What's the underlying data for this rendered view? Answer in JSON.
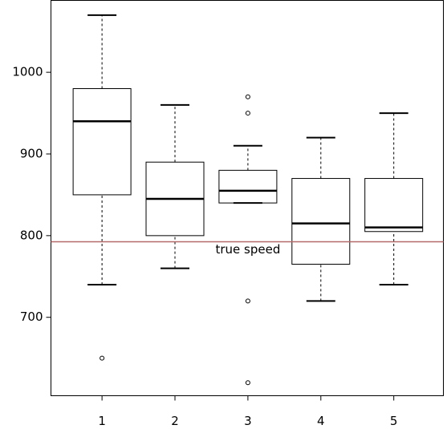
{
  "chart_data": {
    "type": "boxplot",
    "x": [
      1,
      2,
      3,
      4,
      5
    ],
    "boxes": [
      {
        "whislo": 740,
        "q1": 850,
        "med": 940,
        "q3": 980,
        "whishi": 1070,
        "fliers": [
          650
        ]
      },
      {
        "whislo": 760,
        "q1": 800,
        "med": 845,
        "q3": 890,
        "whishi": 960,
        "fliers": []
      },
      {
        "whislo": 840,
        "q1": 840,
        "med": 855,
        "q3": 880,
        "whishi": 910,
        "fliers": [
          620,
          720,
          950,
          970
        ]
      },
      {
        "whislo": 720,
        "q1": 765,
        "med": 815,
        "q3": 870,
        "whishi": 920,
        "fliers": []
      },
      {
        "whislo": 740,
        "q1": 805,
        "med": 810,
        "q3": 870,
        "whishi": 950,
        "fliers": []
      }
    ],
    "xlim": [
      0.3,
      5.68
    ],
    "xticks": [
      1,
      2,
      3,
      4,
      5
    ],
    "ylim": [
      604,
      1088
    ],
    "yticks": [
      700,
      800,
      900,
      1000
    ],
    "hline": {
      "value": 792.458,
      "label": "true speed",
      "color": "#b56a6a"
    },
    "color": "#000000"
  }
}
